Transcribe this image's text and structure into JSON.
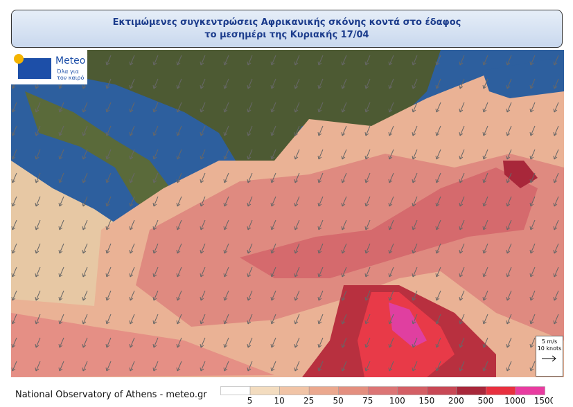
{
  "header": {
    "title_line1": "Εκτιμώμενες συγκεντρώσεις Αφρικανικής σκόνης κοντά στο έδαφος",
    "title_line2": "το μεσημέρι της Κυριακής 17/04"
  },
  "logo": {
    "brand": "Meteo",
    "tagline": "Όλα για τον καιρό"
  },
  "wind_scale": {
    "speed": "5 m/s",
    "knots": "10 knots"
  },
  "footer": "National Observatory of Athens - meteo.gr",
  "legend": {
    "levels": [
      5,
      10,
      25,
      50,
      75,
      100,
      150,
      200,
      500,
      1000,
      1500
    ],
    "colors": [
      "#ffffff",
      "#f3dcbf",
      "#f1c4a6",
      "#eba88e",
      "#e48f7f",
      "#dc7575",
      "#d45f65",
      "#c84855",
      "#a8273a",
      "#e8303f",
      "#e83ca0"
    ]
  }
}
